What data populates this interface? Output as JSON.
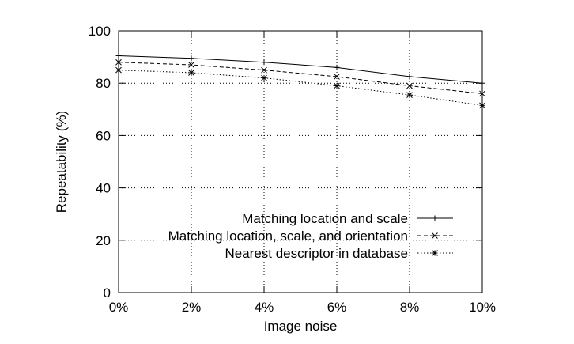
{
  "chart_data": {
    "type": "line",
    "title": "",
    "xlabel": "Image noise",
    "ylabel": "Repeatability (%)",
    "x": [
      0,
      2,
      4,
      6,
      8,
      10
    ],
    "x_tick_labels": [
      "0%",
      "2%",
      "4%",
      "6%",
      "8%",
      "10%"
    ],
    "xlim": [
      0,
      10
    ],
    "ylim": [
      0,
      100
    ],
    "y_ticks": [
      0,
      20,
      40,
      60,
      80,
      100
    ],
    "grid": "dotted",
    "legend_position": "bottom-right",
    "series": [
      {
        "name": "Matching location and scale",
        "style": "solid",
        "marker": "plus",
        "values": [
          90.5,
          89.5,
          88,
          86,
          82.5,
          80
        ]
      },
      {
        "name": "Matching location, scale, and orientation",
        "style": "dashed",
        "marker": "cross",
        "values": [
          88,
          87,
          85,
          82.5,
          79,
          76
        ]
      },
      {
        "name": "Nearest descriptor in database",
        "style": "dotted",
        "marker": "star",
        "values": [
          85,
          84,
          82,
          79,
          75.5,
          71.5
        ]
      }
    ]
  }
}
